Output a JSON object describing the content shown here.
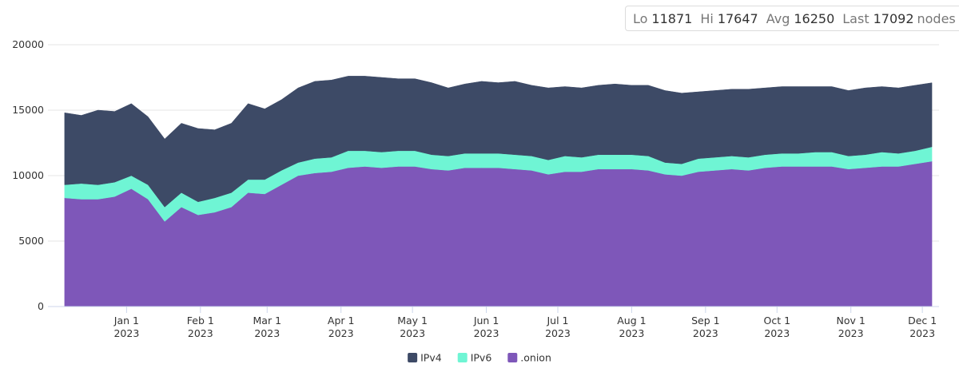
{
  "stats": {
    "items": [
      {
        "label": "Lo",
        "value": 11871
      },
      {
        "label": "Hi",
        "value": 17647
      },
      {
        "label": "Avg",
        "value": 16250
      },
      {
        "label": "Last",
        "value": 17092
      }
    ],
    "unit": "nodes"
  },
  "chart_data": {
    "type": "stacked_area",
    "x": [
      "2022-12-06",
      "2022-12-13",
      "2022-12-20",
      "2022-12-27",
      "2023-01-03",
      "2023-01-10",
      "2023-01-17",
      "2023-01-24",
      "2023-01-31",
      "2023-02-07",
      "2023-02-14",
      "2023-02-21",
      "2023-02-28",
      "2023-03-07",
      "2023-03-14",
      "2023-03-21",
      "2023-03-28",
      "2023-04-04",
      "2023-04-11",
      "2023-04-18",
      "2023-04-25",
      "2023-05-02",
      "2023-05-09",
      "2023-05-16",
      "2023-05-23",
      "2023-05-30",
      "2023-06-06",
      "2023-06-13",
      "2023-06-20",
      "2023-06-27",
      "2023-07-04",
      "2023-07-11",
      "2023-07-18",
      "2023-07-25",
      "2023-08-01",
      "2023-08-08",
      "2023-08-15",
      "2023-08-22",
      "2023-08-29",
      "2023-09-05",
      "2023-09-12",
      "2023-09-19",
      "2023-09-26",
      "2023-10-03",
      "2023-10-10",
      "2023-10-17",
      "2023-10-24",
      "2023-10-31",
      "2023-11-07",
      "2023-11-14",
      "2023-11-21",
      "2023-11-28",
      "2023-12-05"
    ],
    "series": [
      {
        "name": "IPv4",
        "color": "#3d4a66",
        "values": [
          5500,
          5200,
          5700,
          5400,
          5500,
          5200,
          5200,
          5300,
          5600,
          5200,
          5300,
          5800,
          5400,
          5400,
          5700,
          5900,
          5900,
          5700,
          5700,
          5700,
          5500,
          5500,
          5500,
          5200,
          5300,
          5500,
          5400,
          5600,
          5400,
          5500,
          5300,
          5300,
          5300,
          5400,
          5300,
          5400,
          5500,
          5400,
          5100,
          5100,
          5100,
          5200,
          5100,
          5100,
          5100,
          5000,
          5000,
          5000,
          5100,
          5000,
          5000,
          5000,
          4892
        ]
      },
      {
        "name": "IPv6",
        "color": "#6ff5d4",
        "values": [
          1000,
          1200,
          1100,
          1100,
          1000,
          1100,
          1100,
          1100,
          1000,
          1100,
          1100,
          1000,
          1100,
          1100,
          1000,
          1100,
          1100,
          1300,
          1200,
          1200,
          1200,
          1200,
          1100,
          1100,
          1100,
          1100,
          1100,
          1100,
          1100,
          1100,
          1200,
          1100,
          1100,
          1100,
          1100,
          1100,
          900,
          900,
          1000,
          1000,
          1000,
          1000,
          1000,
          1000,
          1000,
          1100,
          1100,
          1000,
          1000,
          1100,
          1000,
          1000,
          1100
        ]
      },
      {
        "name": ".onion",
        "color": "#7e57b9",
        "values": [
          8300,
          8200,
          8200,
          8400,
          9000,
          8200,
          6500,
          7600,
          7000,
          7200,
          7600,
          8700,
          8600,
          9300,
          10000,
          10200,
          10300,
          10600,
          10700,
          10600,
          10700,
          10700,
          10500,
          10400,
          10600,
          10600,
          10600,
          10500,
          10400,
          10100,
          10300,
          10300,
          10500,
          10500,
          10500,
          10400,
          10100,
          10000,
          10300,
          10400,
          10500,
          10400,
          10600,
          10700,
          10700,
          10700,
          10700,
          10500,
          10600,
          10700,
          10700,
          10900,
          11100
        ]
      }
    ],
    "xlim": [
      "2022-11-29",
      "2023-12-08"
    ],
    "xticks": [
      {
        "value": "2023-01-01",
        "label": "Jan 1\n2023"
      },
      {
        "value": "2023-02-01",
        "label": "Feb 1\n2023"
      },
      {
        "value": "2023-03-01",
        "label": "Mar 1\n2023"
      },
      {
        "value": "2023-04-01",
        "label": "Apr 1\n2023"
      },
      {
        "value": "2023-05-01",
        "label": "May 1\n2023"
      },
      {
        "value": "2023-06-01",
        "label": "Jun 1\n2023"
      },
      {
        "value": "2023-07-01",
        "label": "Jul 1\n2023"
      },
      {
        "value": "2023-08-01",
        "label": "Aug 1\n2023"
      },
      {
        "value": "2023-09-01",
        "label": "Sep 1\n2023"
      },
      {
        "value": "2023-10-01",
        "label": "Oct 1\n2023"
      },
      {
        "value": "2023-11-01",
        "label": "Nov 1\n2023"
      },
      {
        "value": "2023-12-01",
        "label": "Dec 1\n2023"
      }
    ],
    "ylim": [
      0,
      20000
    ],
    "yticks": [
      0,
      5000,
      10000,
      15000,
      20000
    ],
    "grid": true,
    "legend": "bottom"
  }
}
